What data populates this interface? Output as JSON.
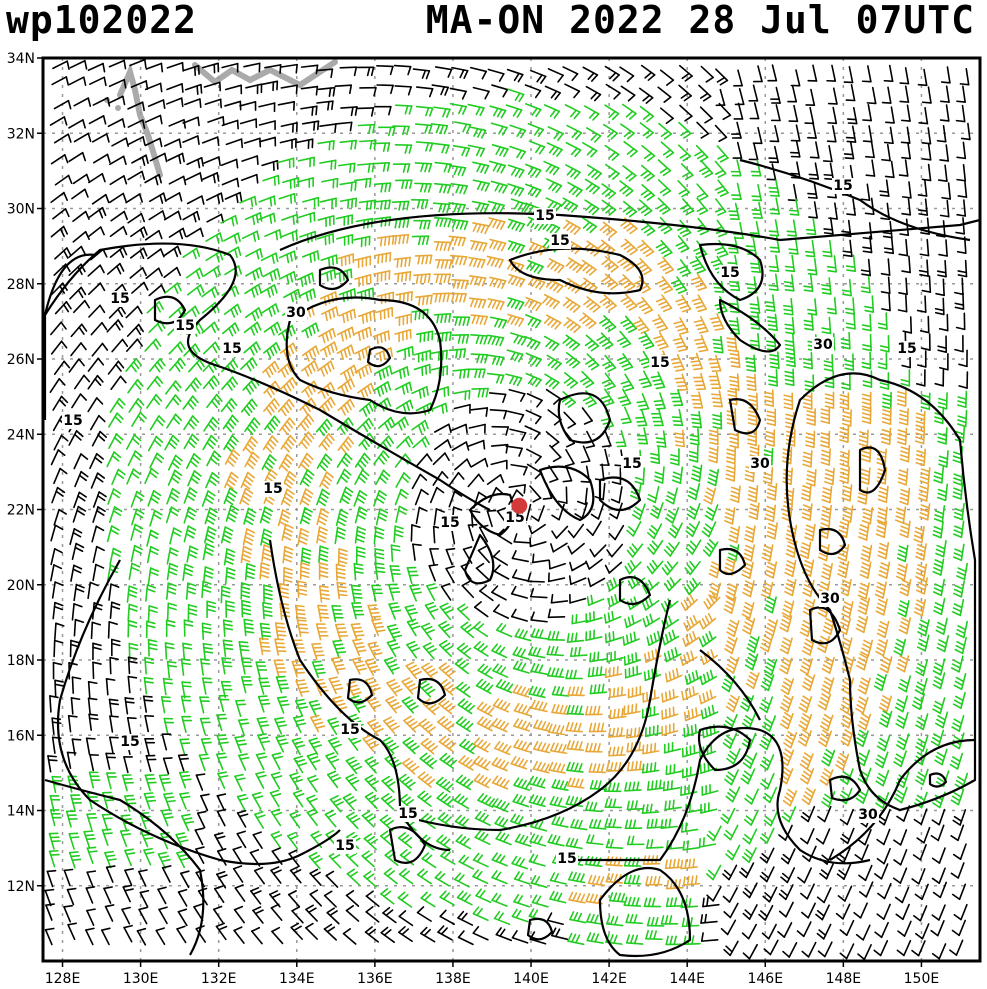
{
  "header": {
    "storm_id": "wp102022",
    "title": "MA-ON 2022 28 Jul 07UTC"
  },
  "map": {
    "lon_range": [
      127.5,
      151.5
    ],
    "lat_range": [
      10.0,
      34.0
    ],
    "lat_ticks": [
      "34N",
      "32N",
      "30N",
      "28N",
      "26N",
      "24N",
      "22N",
      "20N",
      "18N",
      "16N",
      "14N",
      "12N"
    ],
    "lon_ticks": [
      "128E",
      "130E",
      "132E",
      "134E",
      "136E",
      "138E",
      "140E",
      "142E",
      "144E",
      "146E",
      "148E",
      "150E"
    ],
    "contour_labels": [
      "15",
      "15",
      "15",
      "15",
      "15",
      "15",
      "15",
      "15",
      "15",
      "15",
      "15",
      "15",
      "15",
      "15",
      "15",
      "15",
      "15",
      "15",
      "15",
      "30",
      "30",
      "30",
      "30",
      "30"
    ],
    "storm_center": {
      "lon": 139.7,
      "lat": 22.1
    },
    "colors": {
      "calm_barb": "#000000",
      "mid_barb": "#22cc22",
      "strong_barb": "#e8a838",
      "storm_marker": "#d33b3b",
      "land": "#aaaaaa",
      "grid": "#999999"
    }
  }
}
